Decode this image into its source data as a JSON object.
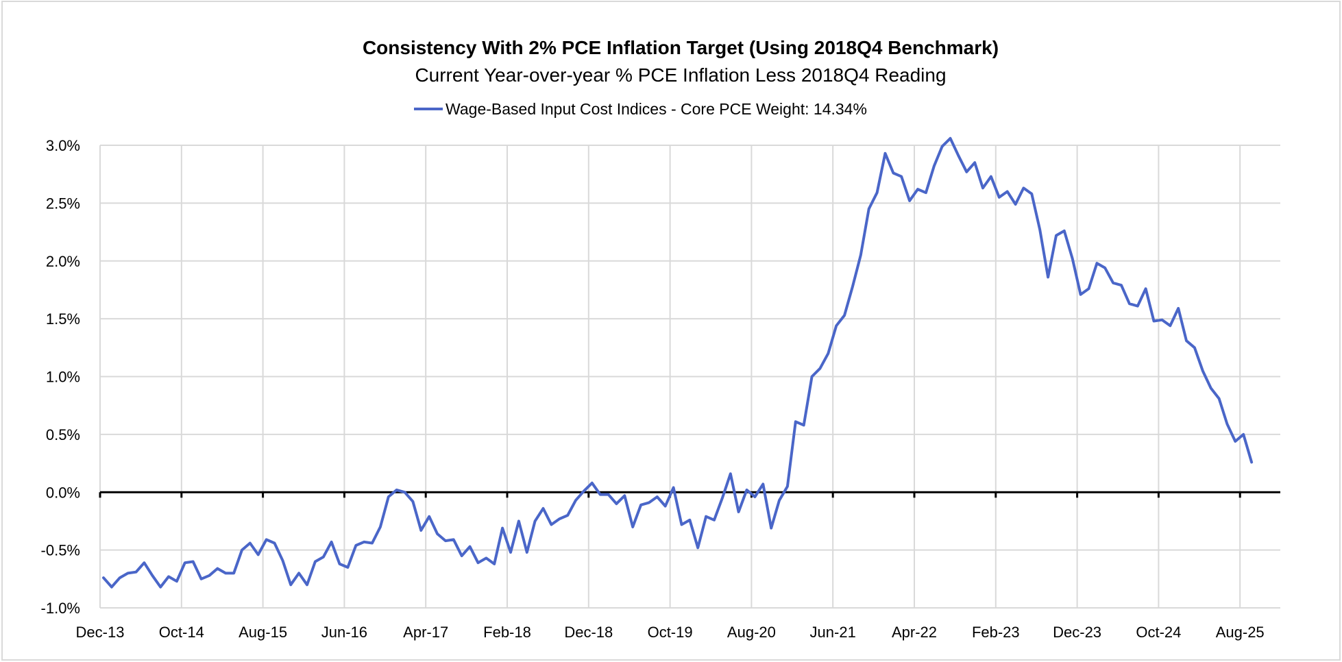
{
  "chart_data": {
    "type": "line",
    "title": "Consistency With 2% PCE Inflation Target (Using 2018Q4 Benchmark)",
    "subtitle": "Current Year-over-year % PCE Inflation Less 2018Q4 Reading",
    "xlabel": "",
    "ylabel": "",
    "ylim": [
      -1.0,
      3.0
    ],
    "y_ticks": [
      "-1.0%",
      "-0.5%",
      "0.0%",
      "0.5%",
      "1.0%",
      "1.5%",
      "2.0%",
      "2.5%",
      "3.0%"
    ],
    "y_tick_values": [
      -1.0,
      -0.5,
      0.0,
      0.5,
      1.0,
      1.5,
      2.0,
      2.5,
      3.0
    ],
    "x_ticks": [
      "Dec-13",
      "Oct-14",
      "Aug-15",
      "Jun-16",
      "Apr-17",
      "Feb-18",
      "Dec-18",
      "Oct-19",
      "Aug-20",
      "Jun-21",
      "Apr-22",
      "Feb-23",
      "Dec-23",
      "Oct-24",
      "Aug-25"
    ],
    "x_tick_interval_months": 10,
    "x_start": "Dec-13",
    "x_end": "Sep-25",
    "grid": true,
    "legend_position": "top",
    "series": [
      {
        "name": "Wage-Based Input Cost Indices - Core PCE Weight: 14.34%",
        "color": "#4A66C8",
        "frequency": "monthly",
        "values": [
          -0.74,
          -0.82,
          -0.74,
          -0.7,
          -0.69,
          -0.61,
          -0.72,
          -0.82,
          -0.73,
          -0.77,
          -0.61,
          -0.6,
          -0.75,
          -0.72,
          -0.66,
          -0.7,
          -0.7,
          -0.5,
          -0.44,
          -0.54,
          -0.41,
          -0.44,
          -0.59,
          -0.8,
          -0.7,
          -0.8,
          -0.6,
          -0.56,
          -0.43,
          -0.62,
          -0.65,
          -0.46,
          -0.43,
          -0.44,
          -0.3,
          -0.04,
          0.02,
          0.0,
          -0.08,
          -0.33,
          -0.21,
          -0.36,
          -0.42,
          -0.41,
          -0.55,
          -0.47,
          -0.61,
          -0.57,
          -0.62,
          -0.31,
          -0.52,
          -0.25,
          -0.52,
          -0.25,
          -0.14,
          -0.28,
          -0.23,
          -0.2,
          -0.07,
          0.01,
          0.08,
          -0.02,
          -0.02,
          -0.1,
          -0.03,
          -0.3,
          -0.11,
          -0.09,
          -0.04,
          -0.12,
          0.04,
          -0.28,
          -0.24,
          -0.48,
          -0.21,
          -0.24,
          -0.05,
          0.16,
          -0.17,
          0.02,
          -0.04,
          0.07,
          -0.31,
          -0.07,
          0.05,
          0.61,
          0.58,
          1.0,
          1.07,
          1.2,
          1.44,
          1.53,
          1.78,
          2.05,
          2.45,
          2.59,
          2.93,
          2.76,
          2.73,
          2.52,
          2.62,
          2.59,
          2.82,
          2.99,
          3.06,
          2.91,
          2.77,
          2.85,
          2.63,
          2.73,
          2.55,
          2.6,
          2.49,
          2.63,
          2.58,
          2.27,
          1.86,
          2.22,
          2.26,
          2.02,
          1.71,
          1.76,
          1.98,
          1.94,
          1.81,
          1.79,
          1.63,
          1.61,
          1.76,
          1.48,
          1.49,
          1.44,
          1.59,
          1.31,
          1.25,
          1.05,
          0.9,
          0.81,
          0.59,
          0.44,
          0.5,
          0.26
        ]
      }
    ]
  }
}
